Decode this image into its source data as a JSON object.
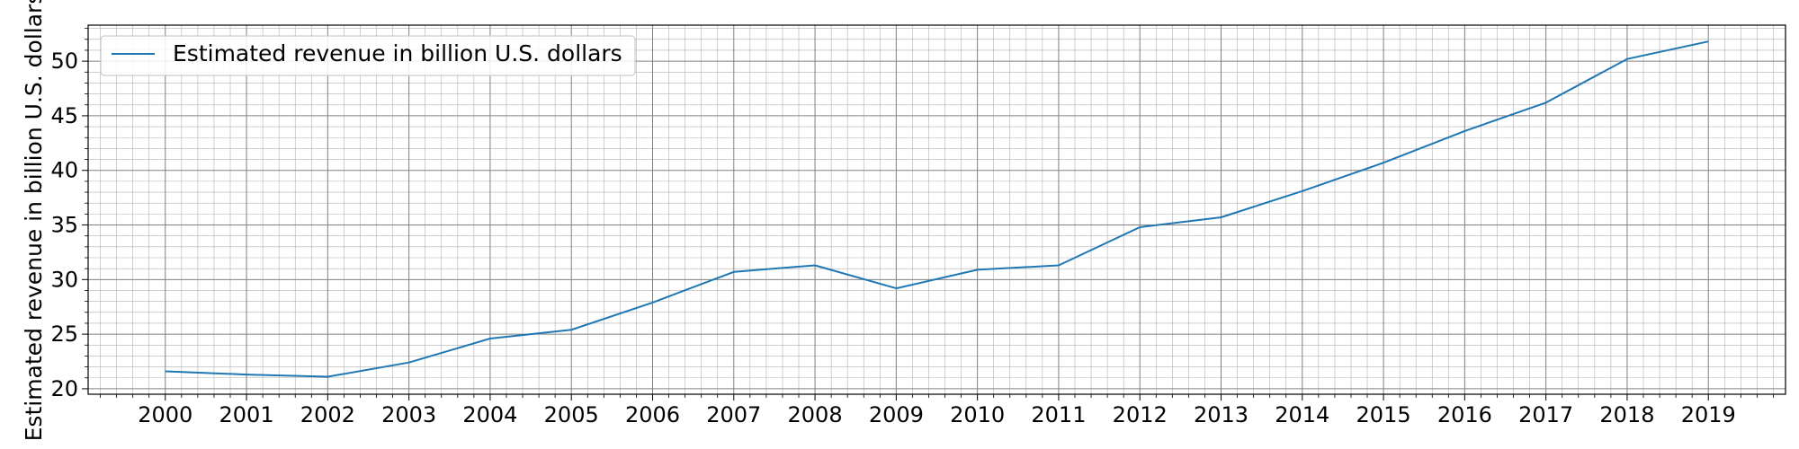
{
  "chart_data": {
    "type": "line",
    "title": "",
    "xlabel": "",
    "ylabel": "Estimated revenue in billion U.S. dollars",
    "x": [
      "2000",
      "2001",
      "2002",
      "2003",
      "2004",
      "2005",
      "2006",
      "2007",
      "2008",
      "2009",
      "2010",
      "2011",
      "2012",
      "2013",
      "2014",
      "2015",
      "2016",
      "2017",
      "2018",
      "2019"
    ],
    "series": [
      {
        "name": "Estimated revenue in billion U.S. dollars",
        "color": "#1f77b4",
        "values": [
          21.6,
          21.3,
          21.1,
          22.4,
          24.6,
          25.4,
          27.9,
          30.7,
          31.3,
          29.2,
          30.9,
          31.3,
          34.8,
          35.7,
          38.1,
          40.7,
          43.6,
          46.2,
          50.2,
          51.8
        ]
      }
    ],
    "yticks": [
      20,
      25,
      30,
      35,
      40,
      45,
      50
    ],
    "ylim": [
      19.5,
      53.3
    ],
    "xlim": [
      -0.95,
      19.95
    ],
    "grid": true,
    "minor_grid": true,
    "legend_position": "upper left"
  }
}
